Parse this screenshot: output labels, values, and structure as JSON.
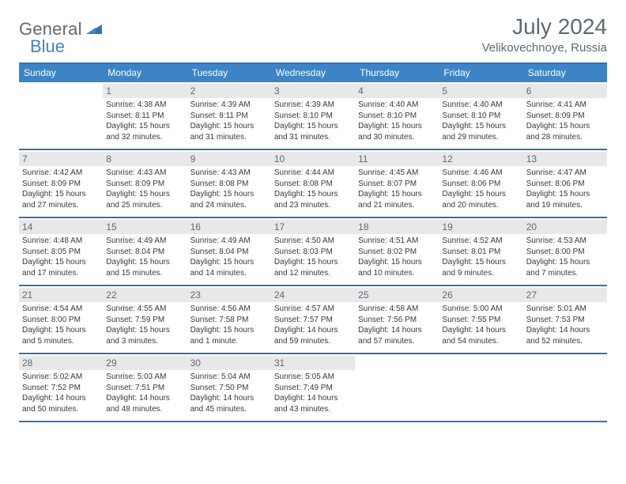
{
  "logo": {
    "general": "General",
    "blue": "Blue"
  },
  "header": {
    "month": "July 2024",
    "location": "Velikovechnoye, Russia"
  },
  "weekdays": [
    "Sunday",
    "Monday",
    "Tuesday",
    "Wednesday",
    "Thursday",
    "Friday",
    "Saturday"
  ],
  "colors": {
    "accent": "#3c84c5",
    "accent_dark": "#2f74b5",
    "text_muted": "#5c6a76",
    "daynum_bg": "#e8e8e8"
  },
  "weeks": [
    [
      {
        "num": "",
        "sunrise": "",
        "sunset": "",
        "daylight": ""
      },
      {
        "num": "1",
        "sunrise": "Sunrise: 4:38 AM",
        "sunset": "Sunset: 8:11 PM",
        "daylight": "Daylight: 15 hours and 32 minutes."
      },
      {
        "num": "2",
        "sunrise": "Sunrise: 4:39 AM",
        "sunset": "Sunset: 8:11 PM",
        "daylight": "Daylight: 15 hours and 31 minutes."
      },
      {
        "num": "3",
        "sunrise": "Sunrise: 4:39 AM",
        "sunset": "Sunset: 8:10 PM",
        "daylight": "Daylight: 15 hours and 31 minutes."
      },
      {
        "num": "4",
        "sunrise": "Sunrise: 4:40 AM",
        "sunset": "Sunset: 8:10 PM",
        "daylight": "Daylight: 15 hours and 30 minutes."
      },
      {
        "num": "5",
        "sunrise": "Sunrise: 4:40 AM",
        "sunset": "Sunset: 8:10 PM",
        "daylight": "Daylight: 15 hours and 29 minutes."
      },
      {
        "num": "6",
        "sunrise": "Sunrise: 4:41 AM",
        "sunset": "Sunset: 8:09 PM",
        "daylight": "Daylight: 15 hours and 28 minutes."
      }
    ],
    [
      {
        "num": "7",
        "sunrise": "Sunrise: 4:42 AM",
        "sunset": "Sunset: 8:09 PM",
        "daylight": "Daylight: 15 hours and 27 minutes."
      },
      {
        "num": "8",
        "sunrise": "Sunrise: 4:43 AM",
        "sunset": "Sunset: 8:09 PM",
        "daylight": "Daylight: 15 hours and 25 minutes."
      },
      {
        "num": "9",
        "sunrise": "Sunrise: 4:43 AM",
        "sunset": "Sunset: 8:08 PM",
        "daylight": "Daylight: 15 hours and 24 minutes."
      },
      {
        "num": "10",
        "sunrise": "Sunrise: 4:44 AM",
        "sunset": "Sunset: 8:08 PM",
        "daylight": "Daylight: 15 hours and 23 minutes."
      },
      {
        "num": "11",
        "sunrise": "Sunrise: 4:45 AM",
        "sunset": "Sunset: 8:07 PM",
        "daylight": "Daylight: 15 hours and 21 minutes."
      },
      {
        "num": "12",
        "sunrise": "Sunrise: 4:46 AM",
        "sunset": "Sunset: 8:06 PM",
        "daylight": "Daylight: 15 hours and 20 minutes."
      },
      {
        "num": "13",
        "sunrise": "Sunrise: 4:47 AM",
        "sunset": "Sunset: 8:06 PM",
        "daylight": "Daylight: 15 hours and 19 minutes."
      }
    ],
    [
      {
        "num": "14",
        "sunrise": "Sunrise: 4:48 AM",
        "sunset": "Sunset: 8:05 PM",
        "daylight": "Daylight: 15 hours and 17 minutes."
      },
      {
        "num": "15",
        "sunrise": "Sunrise: 4:49 AM",
        "sunset": "Sunset: 8:04 PM",
        "daylight": "Daylight: 15 hours and 15 minutes."
      },
      {
        "num": "16",
        "sunrise": "Sunrise: 4:49 AM",
        "sunset": "Sunset: 8:04 PM",
        "daylight": "Daylight: 15 hours and 14 minutes."
      },
      {
        "num": "17",
        "sunrise": "Sunrise: 4:50 AM",
        "sunset": "Sunset: 8:03 PM",
        "daylight": "Daylight: 15 hours and 12 minutes."
      },
      {
        "num": "18",
        "sunrise": "Sunrise: 4:51 AM",
        "sunset": "Sunset: 8:02 PM",
        "daylight": "Daylight: 15 hours and 10 minutes."
      },
      {
        "num": "19",
        "sunrise": "Sunrise: 4:52 AM",
        "sunset": "Sunset: 8:01 PM",
        "daylight": "Daylight: 15 hours and 9 minutes."
      },
      {
        "num": "20",
        "sunrise": "Sunrise: 4:53 AM",
        "sunset": "Sunset: 8:00 PM",
        "daylight": "Daylight: 15 hours and 7 minutes."
      }
    ],
    [
      {
        "num": "21",
        "sunrise": "Sunrise: 4:54 AM",
        "sunset": "Sunset: 8:00 PM",
        "daylight": "Daylight: 15 hours and 5 minutes."
      },
      {
        "num": "22",
        "sunrise": "Sunrise: 4:55 AM",
        "sunset": "Sunset: 7:59 PM",
        "daylight": "Daylight: 15 hours and 3 minutes."
      },
      {
        "num": "23",
        "sunrise": "Sunrise: 4:56 AM",
        "sunset": "Sunset: 7:58 PM",
        "daylight": "Daylight: 15 hours and 1 minute."
      },
      {
        "num": "24",
        "sunrise": "Sunrise: 4:57 AM",
        "sunset": "Sunset: 7:57 PM",
        "daylight": "Daylight: 14 hours and 59 minutes."
      },
      {
        "num": "25",
        "sunrise": "Sunrise: 4:58 AM",
        "sunset": "Sunset: 7:56 PM",
        "daylight": "Daylight: 14 hours and 57 minutes."
      },
      {
        "num": "26",
        "sunrise": "Sunrise: 5:00 AM",
        "sunset": "Sunset: 7:55 PM",
        "daylight": "Daylight: 14 hours and 54 minutes."
      },
      {
        "num": "27",
        "sunrise": "Sunrise: 5:01 AM",
        "sunset": "Sunset: 7:53 PM",
        "daylight": "Daylight: 14 hours and 52 minutes."
      }
    ],
    [
      {
        "num": "28",
        "sunrise": "Sunrise: 5:02 AM",
        "sunset": "Sunset: 7:52 PM",
        "daylight": "Daylight: 14 hours and 50 minutes."
      },
      {
        "num": "29",
        "sunrise": "Sunrise: 5:03 AM",
        "sunset": "Sunset: 7:51 PM",
        "daylight": "Daylight: 14 hours and 48 minutes."
      },
      {
        "num": "30",
        "sunrise": "Sunrise: 5:04 AM",
        "sunset": "Sunset: 7:50 PM",
        "daylight": "Daylight: 14 hours and 45 minutes."
      },
      {
        "num": "31",
        "sunrise": "Sunrise: 5:05 AM",
        "sunset": "Sunset: 7:49 PM",
        "daylight": "Daylight: 14 hours and 43 minutes."
      },
      {
        "num": "",
        "sunrise": "",
        "sunset": "",
        "daylight": ""
      },
      {
        "num": "",
        "sunrise": "",
        "sunset": "",
        "daylight": ""
      },
      {
        "num": "",
        "sunrise": "",
        "sunset": "",
        "daylight": ""
      }
    ]
  ]
}
